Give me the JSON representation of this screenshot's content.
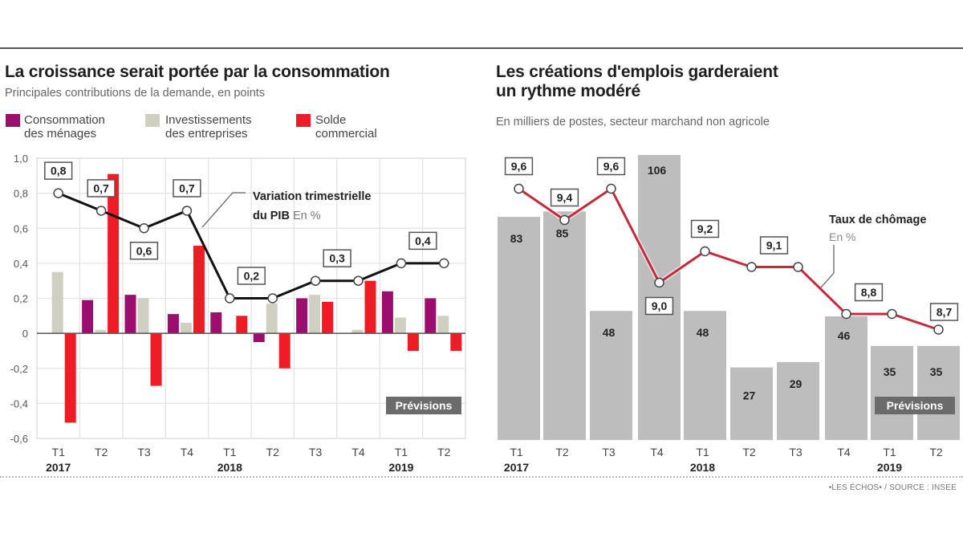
{
  "chart_data": [
    {
      "type": "bar",
      "title": "La croissance serait portée par la consommation",
      "subtitle": "Principales contributions de la demande, en points",
      "xlabel": "",
      "ylabel": "",
      "ylim": [
        -0.6,
        1.0
      ],
      "yticks": [
        "1,0",
        "0,8",
        "0,6",
        "0,4",
        "0,2",
        "0",
        "-0,2",
        "-0,4",
        "-0,6"
      ],
      "ytick_values": [
        1.0,
        0.8,
        0.6,
        0.4,
        0.2,
        0,
        -0.2,
        -0.4,
        -0.6
      ],
      "grid": true,
      "categories": [
        "T1",
        "T2",
        "T3",
        "T4",
        "T1",
        "T2",
        "T3",
        "T4",
        "T1",
        "T2"
      ],
      "years": [
        {
          "label": "2017",
          "index": 0
        },
        {
          "label": "2018",
          "index": 4
        },
        {
          "label": "2019",
          "index": 8
        }
      ],
      "legend_position": "top-left",
      "series": [
        {
          "name": "Consommation des ménages",
          "legend_line1": "Consommation",
          "legend_line2": "des ménages",
          "color": "#9b0e6e",
          "values": [
            0.0,
            0.19,
            0.22,
            0.11,
            0.12,
            -0.05,
            0.2,
            0.0,
            0.24,
            0.2
          ]
        },
        {
          "name": "Investissements des entreprises",
          "legend_line1": "Investissements",
          "legend_line2": "des entreprises",
          "color": "#cfcfc2",
          "values": [
            0.35,
            0.02,
            0.2,
            0.06,
            0.0,
            0.17,
            0.22,
            0.02,
            0.09,
            0.1
          ]
        },
        {
          "name": "Solde commercial",
          "legend_line1": "Solde",
          "legend_line2": "commercial",
          "color": "#ee1c25",
          "values": [
            -0.51,
            0.91,
            -0.3,
            0.5,
            0.1,
            -0.2,
            0.18,
            0.3,
            -0.1,
            -0.1
          ]
        }
      ],
      "line_series": {
        "name": "Variation trimestrielle du PIB",
        "annotation_bold": "Variation trimestrielle",
        "annotation_bold2": "du PIB",
        "annotation_unit": "En %",
        "color": "#111111",
        "values": [
          0.8,
          0.7,
          0.6,
          0.7,
          0.2,
          0.2,
          0.3,
          0.3,
          0.4,
          0.4
        ],
        "labels": [
          {
            "index": 0,
            "text": "0,8",
            "pos": "above"
          },
          {
            "index": 1,
            "text": "0,7",
            "pos": "above"
          },
          {
            "index": 2,
            "text": "0,6",
            "pos": "below"
          },
          {
            "index": 3,
            "text": "0,7",
            "pos": "above"
          },
          {
            "index": 4,
            "text": "0,2",
            "pos": "above-right"
          },
          {
            "index": 6,
            "text": "0,3",
            "pos": "above-right"
          },
          {
            "index": 8,
            "text": "0,4",
            "pos": "above-right"
          }
        ]
      },
      "forecast_label": "Prévisions"
    },
    {
      "type": "bar",
      "title": "Les créations d'emplois garderaient un rythme modéré",
      "title_line1": "Les créations d'emplois garderaient",
      "title_line2": "un rythme modéré",
      "subtitle": "En milliers de postes, secteur marchand non agricole",
      "xlabel": "",
      "ylabel": "",
      "ylim": [
        0,
        106
      ],
      "grid": false,
      "categories": [
        "T1",
        "T2",
        "T3",
        "T4",
        "T1",
        "T2",
        "T3",
        "T4",
        "T1",
        "T2"
      ],
      "years": [
        {
          "label": "2017",
          "index": 0
        },
        {
          "label": "2018",
          "index": 4
        },
        {
          "label": "2019",
          "index": 8
        }
      ],
      "series": [
        {
          "name": "Créations d'emplois",
          "color": "#bdbdbd",
          "values": [
            83,
            85,
            48,
            106,
            48,
            27,
            29,
            46,
            35,
            35
          ]
        }
      ],
      "line_series": {
        "name": "Taux de chômage",
        "annotation_bold": "Taux de chômage",
        "annotation_unit": "En %",
        "color": "#c8283a",
        "values": [
          9.6,
          9.4,
          9.6,
          9.0,
          9.2,
          9.1,
          9.1,
          8.8,
          8.8,
          8.7
        ],
        "labels": [
          {
            "index": 0,
            "text": "9,6",
            "pos": "above"
          },
          {
            "index": 1,
            "text": "9,4",
            "pos": "above"
          },
          {
            "index": 2,
            "text": "9,6",
            "pos": "above"
          },
          {
            "index": 3,
            "text": "9,0",
            "pos": "below"
          },
          {
            "index": 4,
            "text": "9,2",
            "pos": "above"
          },
          {
            "index": 5,
            "text": "9,1",
            "pos": "above-right"
          },
          {
            "index": 7,
            "text": "8,8",
            "pos": "above-right"
          },
          {
            "index": 9,
            "text": "8,7",
            "pos": "above"
          }
        ]
      },
      "forecast_label": "Prévisions"
    }
  ],
  "footer": {
    "source": "•LES ÉCHOS• / SOURCE : INSEE"
  }
}
